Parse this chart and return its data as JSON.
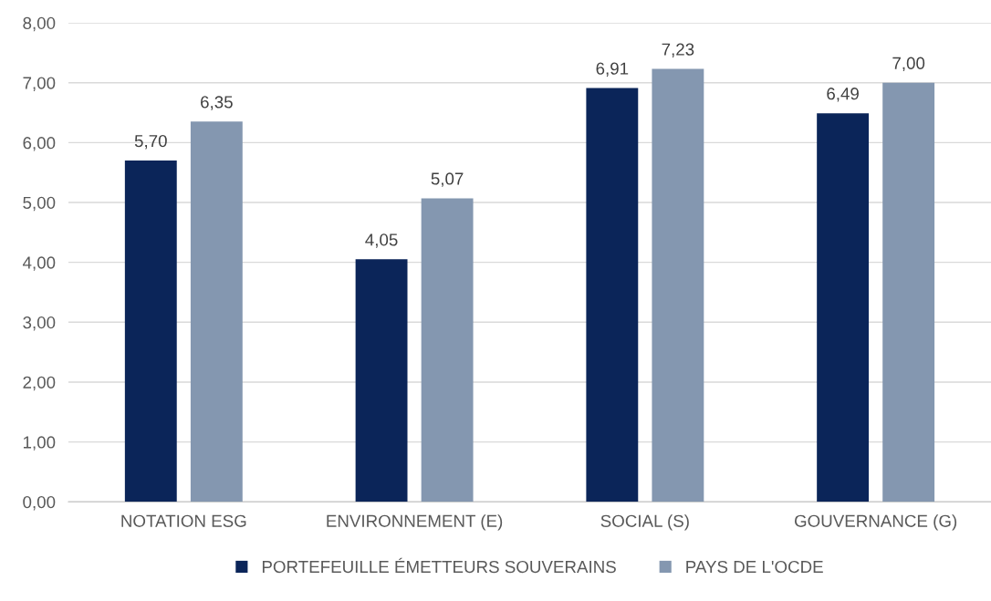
{
  "chart_data": {
    "type": "bar",
    "categories": [
      "NOTATION ESG",
      "ENVIRONNEMENT (E)",
      "SOCIAL (S)",
      "GOUVERNANCE (G)"
    ],
    "series": [
      {
        "name": "PORTEFEUILLE ÉMETTEURS SOUVERAINS",
        "color": "#0b2559",
        "values": [
          5.7,
          4.05,
          6.91,
          6.49
        ],
        "value_labels": [
          "5,70",
          "4,05",
          "6,91",
          "6,49"
        ]
      },
      {
        "name": "PAYS DE L'OCDE",
        "color": "#8497b0",
        "values": [
          6.35,
          5.07,
          7.23,
          7.0
        ],
        "value_labels": [
          "6,35",
          "5,07",
          "7,23",
          "7,00"
        ]
      }
    ],
    "ylim": [
      0,
      8
    ],
    "yticks": [
      {
        "value": 0,
        "label": "0,00"
      },
      {
        "value": 1,
        "label": "1,00"
      },
      {
        "value": 2,
        "label": "2,00"
      },
      {
        "value": 3,
        "label": "3,00"
      },
      {
        "value": 4,
        "label": "4,00"
      },
      {
        "value": 5,
        "label": "5,00"
      },
      {
        "value": 6,
        "label": "6,00"
      },
      {
        "value": 7,
        "label": "7,00"
      },
      {
        "value": 8,
        "label": "8,00"
      }
    ],
    "grid": "y",
    "legend": "bottom"
  }
}
